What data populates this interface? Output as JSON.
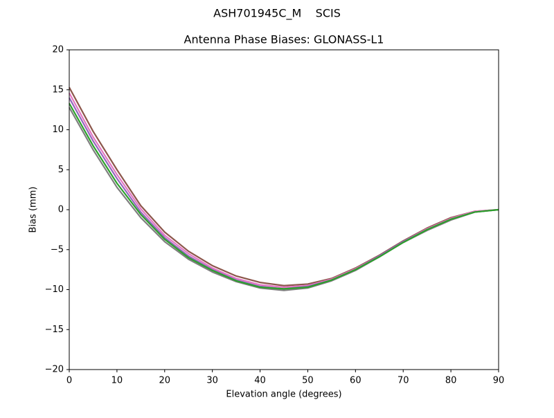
{
  "chart_data": {
    "type": "line",
    "suptitle": "ASH701945C_M    SCIS",
    "title": "Antenna Phase Biases: GLONASS-L1",
    "xlabel": "Elevation angle (degrees)",
    "ylabel": "Bias (mm)",
    "x": [
      0,
      5,
      10,
      15,
      20,
      25,
      30,
      35,
      40,
      45,
      50,
      55,
      60,
      65,
      70,
      75,
      80,
      85,
      90
    ],
    "series": [
      {
        "color": "#8c564b",
        "values": [
          15.3,
          9.8,
          5.0,
          0.5,
          -2.8,
          -5.2,
          -7.0,
          -8.3,
          -9.1,
          -9.5,
          -9.3,
          -8.6,
          -7.3,
          -5.7,
          -3.9,
          -2.3,
          -1.0,
          -0.2,
          0
        ]
      },
      {
        "color": "#e377c2",
        "values": [
          14.6,
          9.1,
          4.4,
          0.1,
          -3.2,
          -5.5,
          -7.3,
          -8.6,
          -9.4,
          -9.7,
          -9.5,
          -8.7,
          -7.4,
          -5.8,
          -4.0,
          -2.4,
          -1.1,
          -0.2,
          0
        ]
      },
      {
        "color": "#9467bd",
        "values": [
          14.0,
          8.6,
          3.9,
          -0.3,
          -3.5,
          -5.8,
          -7.5,
          -8.8,
          -9.6,
          -9.9,
          -9.6,
          -8.8,
          -7.5,
          -5.8,
          -4.0,
          -2.5,
          -1.2,
          -0.3,
          0
        ]
      },
      {
        "color": "#7f7f7f",
        "values": [
          12.8,
          7.5,
          2.8,
          -1.0,
          -4.0,
          -6.2,
          -7.8,
          -9.0,
          -9.8,
          -10.1,
          -9.8,
          -8.9,
          -7.6,
          -5.9,
          -4.1,
          -2.6,
          -1.3,
          -0.3,
          0
        ]
      },
      {
        "color": "#2ca02c",
        "values": [
          13.3,
          8.0,
          3.3,
          -0.6,
          -3.7,
          -6.0,
          -7.6,
          -8.9,
          -9.7,
          -9.9,
          -9.7,
          -8.8,
          -7.5,
          -5.9,
          -4.1,
          -2.5,
          -1.2,
          -0.3,
          0
        ]
      }
    ],
    "xlim": [
      0,
      90
    ],
    "xticks": [
      0,
      10,
      20,
      30,
      40,
      50,
      60,
      70,
      80,
      90
    ],
    "ylim": [
      -20,
      20
    ],
    "yticks": [
      {
        "value": -20,
        "label": "−20"
      },
      {
        "value": -15,
        "label": "−15"
      },
      {
        "value": -10,
        "label": "−10"
      },
      {
        "value": -5,
        "label": "−5"
      },
      0,
      5,
      10,
      15,
      20
    ]
  }
}
